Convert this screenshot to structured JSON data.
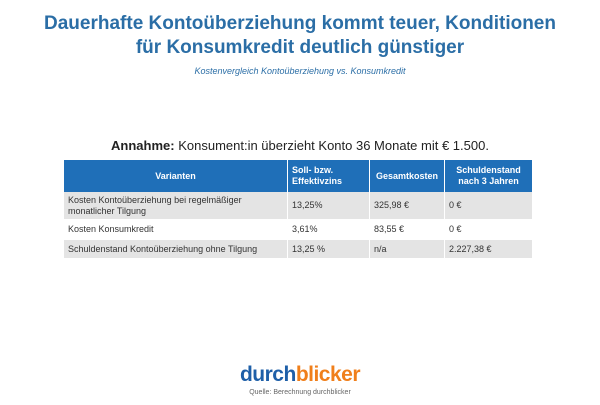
{
  "title_lines": [
    "Dauerhafte Kontoüberziehung kommt teuer, Konditionen",
    "für Konsumkredit deutlich günstiger"
  ],
  "subtitle": "Kostenvergleich Kontoüberziehung vs. Konsumkredit",
  "assumption": {
    "label": "Annahme:",
    "text": " Konsument:in überzieht Konto 36 Monate mit € 1.500."
  },
  "table": {
    "headers": [
      "Varianten",
      "Soll- bzw. Effektivzins",
      "Gesamtkosten",
      "Schuldenstand nach 3 Jahren"
    ],
    "rows": [
      [
        "Kosten Kontoüberziehung bei regelmäßiger monatlicher Tilgung",
        "13,25%",
        "325,98 €",
        "0 €"
      ],
      [
        "Kosten Konsumkredit",
        "3,61%",
        "83,55 €",
        "0 €"
      ],
      [
        "Schuldenstand Kontoüberziehung ohne Tilgung",
        "13,25 %",
        "n/a",
        "2.227,38 €"
      ]
    ]
  },
  "logo": {
    "part1": "durch",
    "part2": "blicker"
  },
  "source": "Quelle: Berechnung durchblicker",
  "colors": {
    "title": "#2b6ea6",
    "header": "#1f6fb8",
    "logo_blue": "#1e5fa8",
    "logo_orange": "#f07f1b"
  }
}
